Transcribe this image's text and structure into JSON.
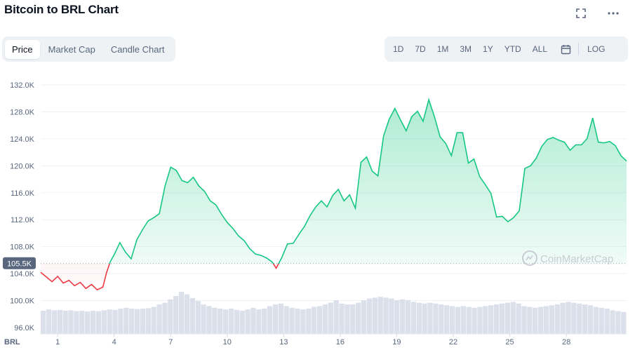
{
  "header": {
    "title": "Bitcoin to BRL Chart",
    "fullscreen_icon": "fullscreen-icon",
    "more_icon": "more-horizontal-icon"
  },
  "tabs": [
    {
      "label": "Price",
      "active": true
    },
    {
      "label": "Market Cap",
      "active": false
    },
    {
      "label": "Candle Chart",
      "active": false
    }
  ],
  "ranges": [
    "1D",
    "7D",
    "1M",
    "3M",
    "1Y",
    "YTD",
    "ALL"
  ],
  "calendar_icon": "calendar-icon",
  "log_label": "LOG",
  "watermark": "CoinMarketCap",
  "currency_label": "BRL",
  "colors": {
    "up": "#16c784",
    "down": "#ea3943",
    "grid": "#eff2f5",
    "axis_text": "#58667e",
    "volume": "#cfd6e4",
    "baseline_badge": "#58667e"
  },
  "chart_data": {
    "type": "line",
    "title": "Bitcoin to BRL Chart",
    "xlabel": "",
    "ylabel": "",
    "ylim": [
      95000,
      135000
    ],
    "y_ticks": [
      "132.0K",
      "128.0K",
      "124.0K",
      "120.0K",
      "116.0K",
      "112.0K",
      "108.0K",
      "104.0K",
      "100.0K",
      "96.0K"
    ],
    "y_tick_values": [
      132000,
      128000,
      124000,
      120000,
      116000,
      112000,
      108000,
      104000,
      100000,
      96000
    ],
    "x_ticks": [
      "1",
      "4",
      "7",
      "10",
      "13",
      "16",
      "19",
      "22",
      "25",
      "28"
    ],
    "x_tick_values": [
      1,
      4,
      7,
      10,
      13,
      16,
      19,
      22,
      25,
      28
    ],
    "xlim": [
      0.1,
      31.2
    ],
    "baseline": {
      "label": "105.5K",
      "value": 105500
    },
    "series": [
      {
        "x": [
          0.1,
          0.4,
          0.7,
          1.0,
          1.3,
          1.6,
          1.9,
          2.2,
          2.5,
          2.8,
          3.1,
          3.4,
          3.6,
          3.8,
          4.0,
          4.3,
          4.6,
          4.9,
          5.2,
          5.5,
          5.8,
          6.1,
          6.4,
          6.7,
          7.0,
          7.3,
          7.6,
          7.9,
          8.2,
          8.5,
          8.8,
          9.1,
          9.4,
          9.7,
          10.0,
          10.3,
          10.6,
          10.9,
          11.2,
          11.5,
          11.8,
          12.1,
          12.4,
          12.6,
          12.9,
          13.2,
          13.5,
          13.8,
          14.1,
          14.4,
          14.7,
          15.0,
          15.3,
          15.6,
          15.9,
          16.2,
          16.5,
          16.8,
          17.1,
          17.4,
          17.7,
          18.0,
          18.3,
          18.6,
          18.9,
          19.2,
          19.5,
          19.8,
          20.1,
          20.4,
          20.7,
          21.0,
          21.3,
          21.6,
          21.9,
          22.2,
          22.5,
          22.8,
          23.1,
          23.4,
          23.7,
          24.0,
          24.3,
          24.6,
          24.9,
          25.2,
          25.5,
          25.8,
          26.1,
          26.4,
          26.7,
          27.0,
          27.3,
          27.6,
          27.9,
          28.2,
          28.5,
          28.8,
          29.1,
          29.4,
          29.7,
          30.0,
          30.3,
          30.6,
          30.9,
          31.2
        ],
        "y": [
          104200,
          103500,
          102800,
          103600,
          102600,
          103000,
          102200,
          102700,
          101800,
          102400,
          101600,
          102000,
          104200,
          105800,
          106800,
          108600,
          107200,
          106200,
          109000,
          110500,
          111800,
          112300,
          112900,
          117000,
          119800,
          119300,
          117800,
          117500,
          118300,
          117000,
          116200,
          114800,
          114200,
          112800,
          111600,
          110700,
          109600,
          108900,
          107700,
          106900,
          106700,
          106300,
          105700,
          104800,
          106400,
          108400,
          108500,
          109800,
          111000,
          112600,
          113900,
          114800,
          113900,
          115600,
          116500,
          114800,
          115700,
          113700,
          120500,
          121300,
          119200,
          118500,
          124400,
          126900,
          128500,
          126800,
          125200,
          127300,
          128100,
          126600,
          129800,
          127300,
          124300,
          123300,
          121500,
          124900,
          124900,
          120400,
          121000,
          118400,
          117200,
          115900,
          112400,
          112500,
          111700,
          112300,
          113300,
          119600,
          120000,
          121100,
          122900,
          123900,
          124200,
          123800,
          123500,
          122300,
          123100,
          123100,
          124000,
          127100,
          123500,
          123400,
          123600,
          123000,
          121500,
          120700
        ]
      }
    ],
    "volume_note": "relative trading volume bars along bottom",
    "volume": [
      0.55,
      0.58,
      0.56,
      0.57,
      0.55,
      0.56,
      0.54,
      0.55,
      0.53,
      0.55,
      0.54,
      0.56,
      0.58,
      0.57,
      0.6,
      0.62,
      0.6,
      0.59,
      0.6,
      0.61,
      0.64,
      0.7,
      0.74,
      0.82,
      0.9,
      1.0,
      0.94,
      0.85,
      0.78,
      0.7,
      0.66,
      0.62,
      0.6,
      0.58,
      0.6,
      0.57,
      0.55,
      0.58,
      0.62,
      0.58,
      0.6,
      0.66,
      0.7,
      0.72,
      0.66,
      0.62,
      0.6,
      0.58,
      0.6,
      0.64,
      0.66,
      0.7,
      0.74,
      0.8,
      0.72,
      0.7,
      0.7,
      0.74,
      0.8,
      0.84,
      0.86,
      0.88,
      0.86,
      0.84,
      0.8,
      0.82,
      0.8,
      0.76,
      0.74,
      0.72,
      0.74,
      0.72,
      0.7,
      0.68,
      0.66,
      0.64,
      0.66,
      0.64,
      0.62,
      0.64,
      0.66,
      0.68,
      0.7,
      0.72,
      0.74,
      0.76,
      0.72,
      0.66,
      0.64,
      0.62,
      0.64,
      0.66,
      0.68,
      0.7,
      0.74,
      0.76,
      0.74,
      0.72,
      0.7,
      0.68,
      0.64,
      0.62,
      0.6,
      0.56,
      0.54,
      0.52
    ]
  }
}
